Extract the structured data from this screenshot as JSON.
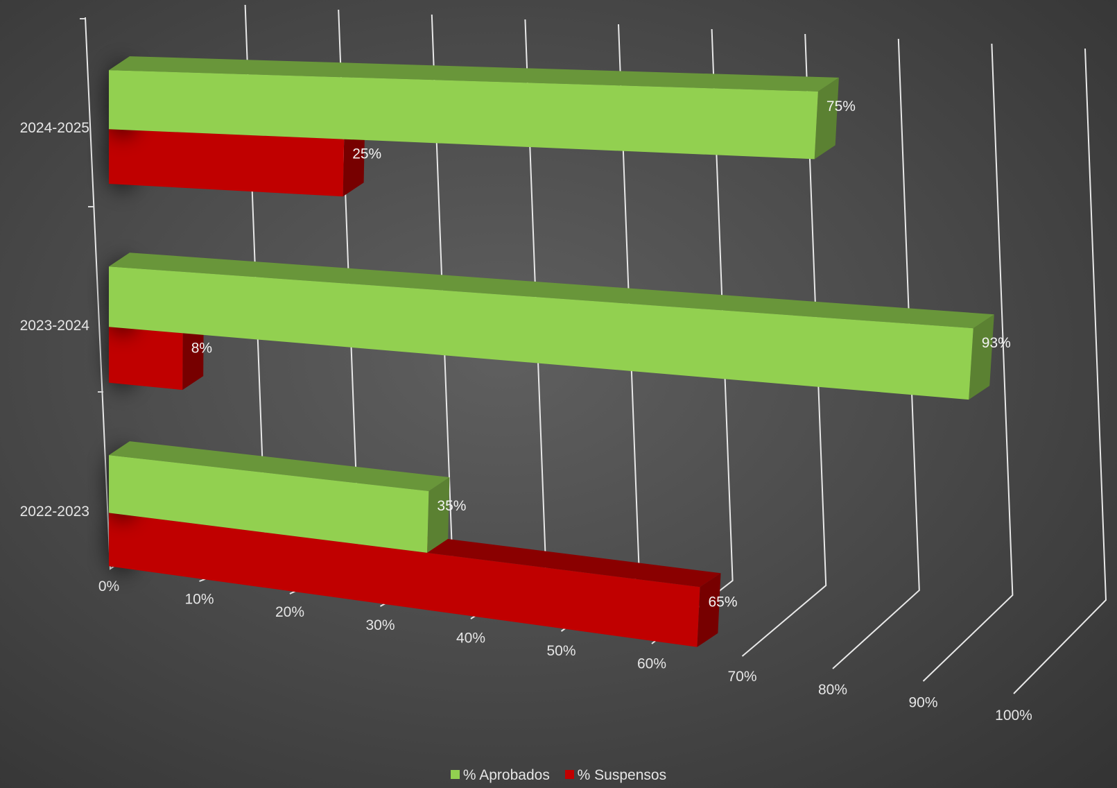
{
  "chart_data": {
    "type": "bar",
    "orientation": "horizontal",
    "style": "3d",
    "categories": [
      "2022-2023",
      "2023-2024",
      "2024-2025"
    ],
    "series": [
      {
        "name": "% Aprobados",
        "values": [
          35,
          93,
          75
        ],
        "color": "#92d050"
      },
      {
        "name": "% Suspensos",
        "values": [
          65,
          8,
          25
        ],
        "color": "#c00000"
      }
    ],
    "data_labels": {
      "% Aprobados": [
        "35%",
        "93%",
        "75%"
      ],
      "% Suspensos": [
        "65%",
        "8%",
        "25%"
      ]
    },
    "x_ticks": [
      "0%",
      "10%",
      "20%",
      "30%",
      "40%",
      "50%",
      "60%",
      "70%",
      "80%",
      "90%",
      "100%"
    ],
    "xlim": [
      0,
      100
    ],
    "grid": true,
    "legend": "bottom",
    "background": "#4d4d4d"
  }
}
